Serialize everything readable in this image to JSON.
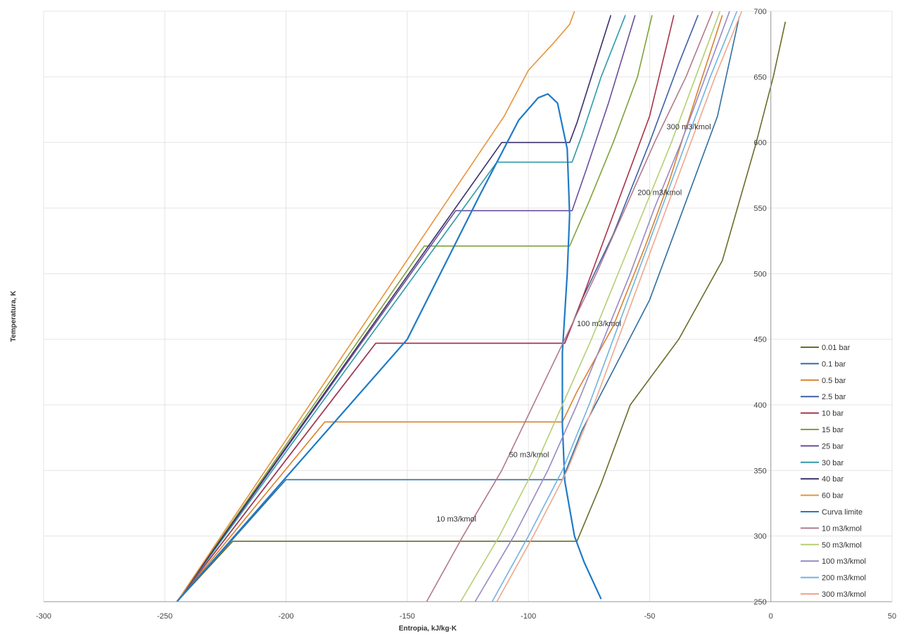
{
  "chart_data": {
    "type": "line",
    "xlabel": "Entropia, kJ/kg·K",
    "ylabel": "Temperatura, K",
    "xlim": [
      -300,
      50
    ],
    "ylim": [
      250,
      700
    ],
    "x_ticks": [
      -300,
      -250,
      -200,
      -150,
      -100,
      -50,
      0,
      50
    ],
    "y_ticks": [
      250,
      300,
      350,
      400,
      450,
      500,
      550,
      600,
      650,
      700
    ],
    "y_axis_at_x": 0,
    "grid": true,
    "legend_position": "right",
    "series": [
      {
        "name": "0.01 bar",
        "color": "#6b6b2a",
        "points": [
          [
            -245,
            250
          ],
          [
            -222,
            296
          ],
          [
            -80,
            296
          ],
          [
            -70,
            340
          ],
          [
            -58,
            400
          ],
          [
            -38,
            450
          ],
          [
            -20,
            510
          ],
          [
            -6,
            600
          ],
          [
            1,
            650
          ],
          [
            6,
            692
          ]
        ]
      },
      {
        "name": "0.1 bar",
        "color": "#2f6f9f",
        "points": [
          [
            -245,
            250
          ],
          [
            -200,
            343
          ],
          [
            -86,
            343
          ],
          [
            -78,
            380
          ],
          [
            -64,
            430
          ],
          [
            -50,
            480
          ],
          [
            -38,
            540
          ],
          [
            -22,
            620
          ],
          [
            -13,
            696
          ]
        ]
      },
      {
        "name": "0.5 bar",
        "color": "#d9822b",
        "points": [
          [
            -245,
            250
          ],
          [
            -184,
            387
          ],
          [
            -86,
            387
          ],
          [
            -80,
            410
          ],
          [
            -65,
            460
          ],
          [
            -52,
            520
          ],
          [
            -42,
            570
          ],
          [
            -30,
            640
          ],
          [
            -20,
            697
          ]
        ]
      },
      {
        "name": "2.5 bar",
        "color": "#3f5fa8",
        "points": [
          [
            -245,
            250
          ],
          [
            -163,
            447
          ],
          [
            -85,
            447
          ],
          [
            -78,
            480
          ],
          [
            -65,
            530
          ],
          [
            -50,
            600
          ],
          [
            -38,
            660
          ],
          [
            -30,
            697
          ]
        ]
      },
      {
        "name": "10 bar",
        "color": "#a8334a",
        "points": [
          [
            -245,
            250
          ],
          [
            -163,
            447
          ],
          [
            -85,
            447
          ],
          [
            -80,
            470
          ],
          [
            -70,
            520
          ],
          [
            -60,
            570
          ],
          [
            -50,
            620
          ],
          [
            -40,
            697
          ]
        ]
      },
      {
        "name": "15 bar",
        "color": "#7fa23a",
        "points": [
          [
            -245,
            250
          ],
          [
            -143,
            521
          ],
          [
            -83,
            521
          ],
          [
            -75,
            555
          ],
          [
            -65,
            600
          ],
          [
            -55,
            650
          ],
          [
            -49,
            697
          ]
        ]
      },
      {
        "name": "25 bar",
        "color": "#6a4c9c",
        "points": [
          [
            -245,
            250
          ],
          [
            -130,
            548
          ],
          [
            -82,
            548
          ],
          [
            -76,
            580
          ],
          [
            -67,
            630
          ],
          [
            -56,
            697
          ]
        ]
      },
      {
        "name": "30 bar",
        "color": "#2f9aa8",
        "points": [
          [
            -245,
            250
          ],
          [
            -113,
            585
          ],
          [
            -82,
            585
          ],
          [
            -78,
            605
          ],
          [
            -70,
            650
          ],
          [
            -60,
            697
          ]
        ]
      },
      {
        "name": "40 bar",
        "color": "#3b2f6a",
        "points": [
          [
            -245,
            250
          ],
          [
            -111,
            600
          ],
          [
            -83,
            600
          ],
          [
            -80,
            615
          ],
          [
            -74,
            650
          ],
          [
            -66,
            697
          ]
        ]
      },
      {
        "name": "60 bar",
        "color": "#e8943a",
        "points": [
          [
            -245,
            250
          ],
          [
            -110,
            620
          ],
          [
            -100,
            655
          ],
          [
            -90,
            675
          ],
          [
            -83,
            690
          ],
          [
            -81,
            700
          ]
        ]
      },
      {
        "name": "Curva limite",
        "color": "#1f7ac8",
        "points": [
          [
            -245,
            250
          ],
          [
            -150,
            450
          ],
          [
            -120,
            560
          ],
          [
            -104,
            617
          ],
          [
            -96,
            634
          ],
          [
            -92,
            637
          ],
          [
            -88,
            630
          ],
          [
            -84,
            595
          ],
          [
            -83,
            545
          ],
          [
            -84,
            500
          ],
          [
            -86,
            440
          ],
          [
            -86,
            385
          ],
          [
            -85,
            342
          ],
          [
            -81,
            300
          ],
          [
            -77,
            280
          ],
          [
            -70,
            252
          ]
        ]
      },
      {
        "name": "10 m3/kmol",
        "color": "#b07a8a",
        "points": [
          [
            -142,
            250
          ],
          [
            -127,
            300
          ],
          [
            -111,
            350
          ],
          [
            -98,
            400
          ],
          [
            -85,
            450
          ],
          [
            -72,
            500
          ],
          [
            -60,
            550
          ],
          [
            -48,
            600
          ],
          [
            -35,
            650
          ],
          [
            -24,
            700
          ]
        ]
      },
      {
        "name": "50 m3/kmol",
        "color": "#b5cf74",
        "points": [
          [
            -128,
            250
          ],
          [
            -112,
            300
          ],
          [
            -98,
            350
          ],
          [
            -86,
            400
          ],
          [
            -74,
            450
          ],
          [
            -63,
            500
          ],
          [
            -52,
            550
          ],
          [
            -41,
            600
          ],
          [
            -31,
            650
          ],
          [
            -21,
            700
          ]
        ]
      },
      {
        "name": "100 m3/kmol",
        "color": "#9888c4",
        "points": [
          [
            -122,
            250
          ],
          [
            -106,
            300
          ],
          [
            -92,
            350
          ],
          [
            -80,
            400
          ],
          [
            -69,
            450
          ],
          [
            -58,
            500
          ],
          [
            -48,
            550
          ],
          [
            -37,
            600
          ],
          [
            -27,
            650
          ],
          [
            -17,
            700
          ]
        ]
      },
      {
        "name": "200 m3/kmol",
        "color": "#6fb3df",
        "points": [
          [
            -115,
            250
          ],
          [
            -100,
            300
          ],
          [
            -86,
            350
          ],
          [
            -75,
            400
          ],
          [
            -65,
            450
          ],
          [
            -55,
            500
          ],
          [
            -45,
            550
          ],
          [
            -35,
            600
          ],
          [
            -25,
            650
          ],
          [
            -14,
            700
          ]
        ]
      },
      {
        "name": "300 m3/kmol",
        "color": "#f0a78c",
        "points": [
          [
            -113,
            250
          ],
          [
            -98,
            300
          ],
          [
            -84,
            350
          ],
          [
            -73,
            400
          ],
          [
            -63,
            450
          ],
          [
            -53,
            500
          ],
          [
            -43,
            550
          ],
          [
            -33,
            600
          ],
          [
            -23,
            650
          ],
          [
            -12,
            700
          ]
        ]
      }
    ],
    "annotations": [
      {
        "text": "10 m3/kmol",
        "x": -138,
        "y": 311
      },
      {
        "text": "50 m3/kmol",
        "x": -108,
        "y": 360
      },
      {
        "text": "100 m3/kmol",
        "x": -80,
        "y": 460
      },
      {
        "text": "200 m3/kmol",
        "x": -55,
        "y": 560
      },
      {
        "text": "300 m3/kmol",
        "x": -43,
        "y": 610
      }
    ]
  }
}
